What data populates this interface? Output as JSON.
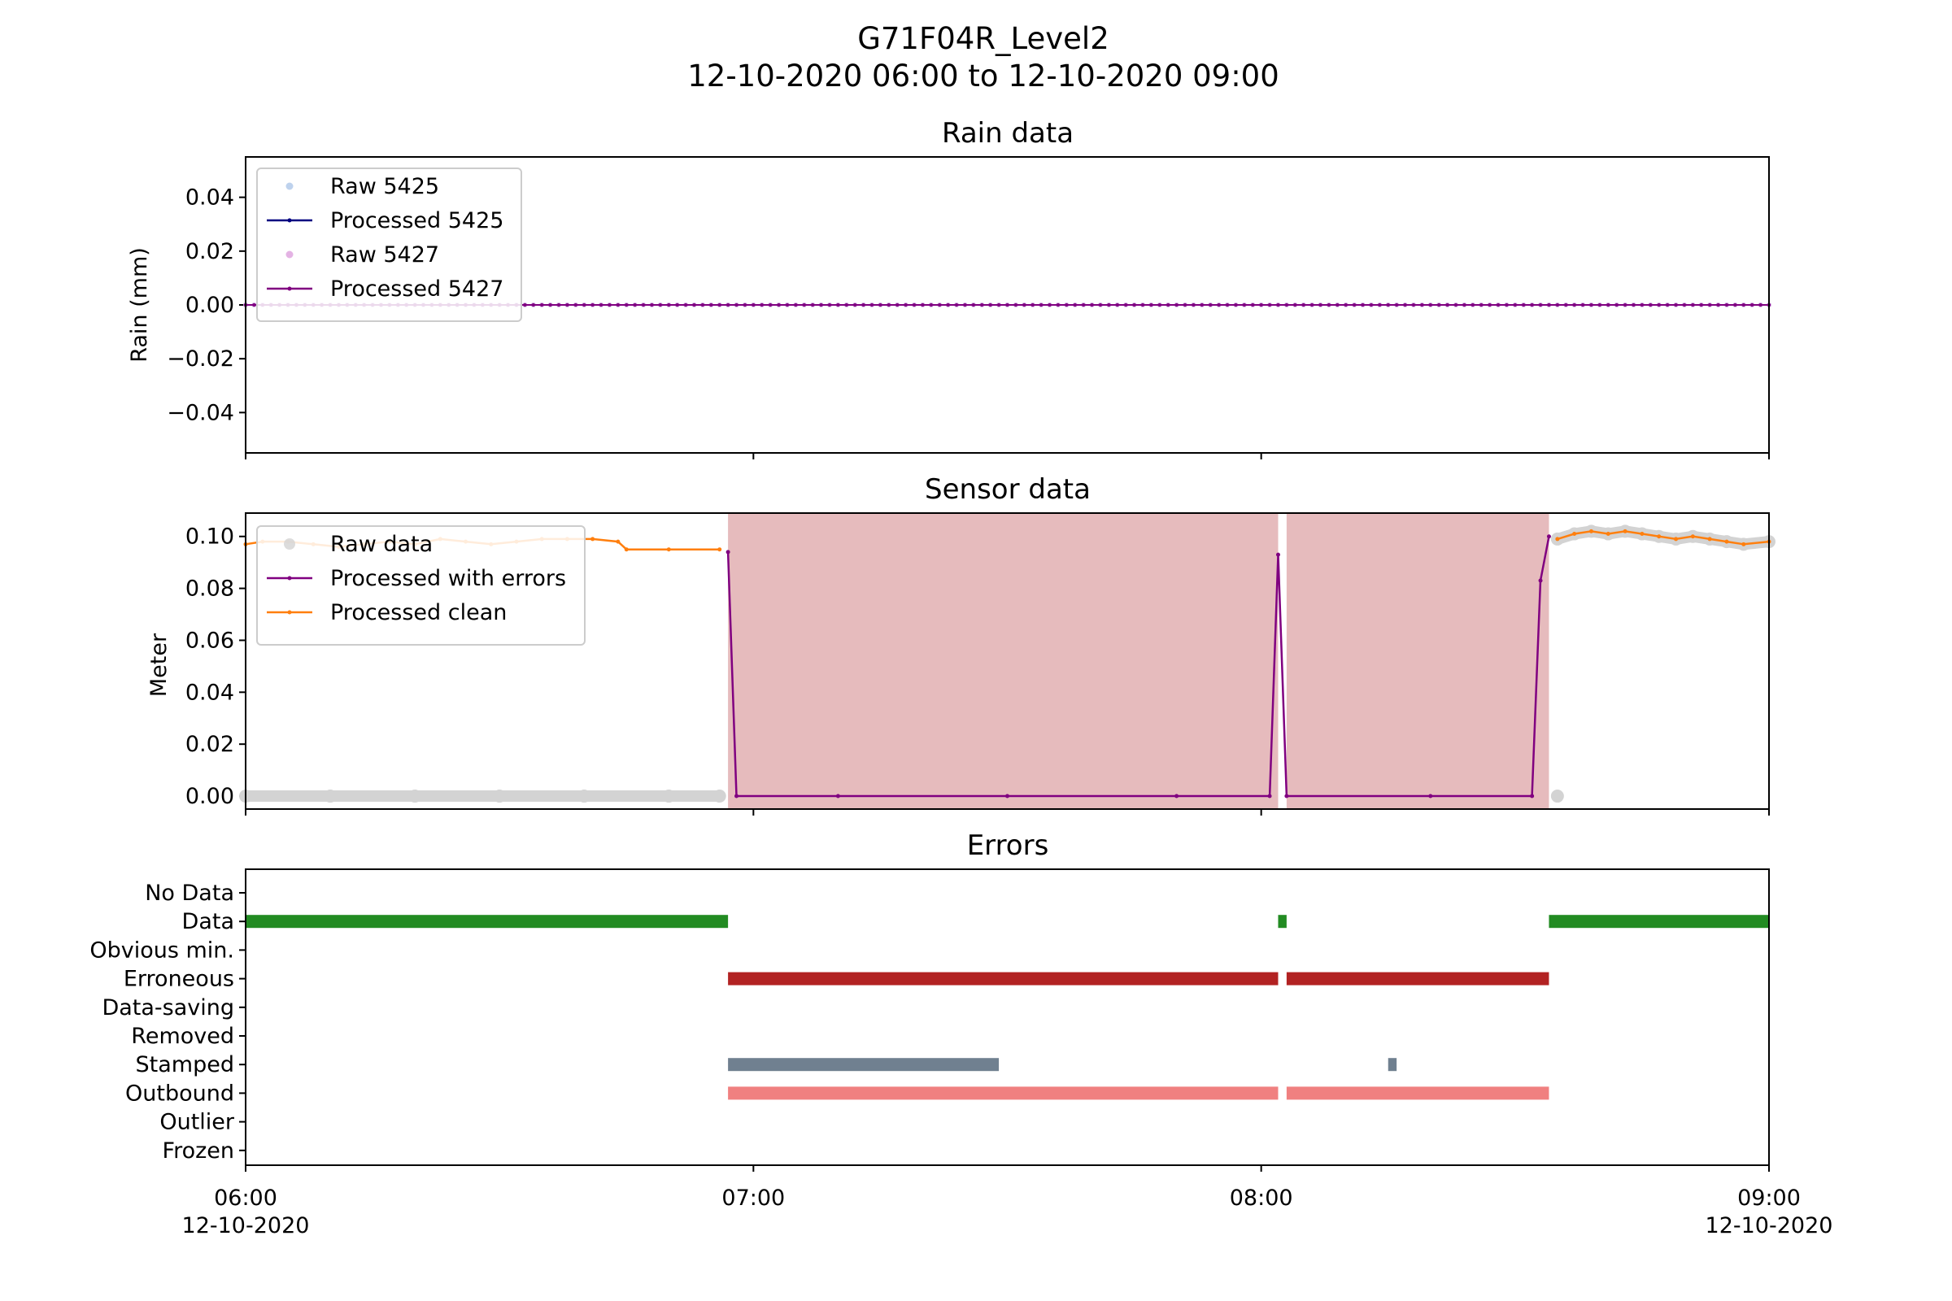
{
  "figure": {
    "title": "G71F04R_Level2",
    "subtitle": "12-10-2020 06:00 to 12-10-2020 09:00"
  },
  "x_axis": {
    "range": [
      "06:00",
      "09:00"
    ],
    "ticks": [
      {
        "value": "06:00",
        "date": "12-10-2020"
      },
      {
        "value": "07:00",
        "date": ""
      },
      {
        "value": "08:00",
        "date": ""
      },
      {
        "value": "09:00",
        "date": "12-10-2020"
      }
    ]
  },
  "chart_data": [
    {
      "type": "line",
      "title": "Rain data",
      "ylabel": "Rain (mm)",
      "ylim": [
        -0.055,
        0.055
      ],
      "yticks": [
        "0.04",
        "0.02",
        "0.00",
        "−0.02",
        "−0.04"
      ],
      "ytick_values": [
        0.04,
        0.02,
        0.0,
        -0.02,
        -0.04
      ],
      "legend": {
        "position": "upper-left"
      },
      "series": [
        {
          "name": "Raw 5425",
          "style": "points",
          "color": "#aec7e8",
          "x_range": [
            "06:00",
            "09:00"
          ],
          "step_minutes": 1,
          "constant_value": 0.0
        },
        {
          "name": "Processed 5425",
          "style": "line-markers",
          "color": "#000080",
          "x_range": [
            "06:00",
            "09:00"
          ],
          "step_minutes": 1,
          "constant_value": 0.0
        },
        {
          "name": "Raw 5427",
          "style": "points",
          "color": "#dda0dd",
          "x_range": [
            "06:00",
            "09:00"
          ],
          "step_minutes": 1,
          "constant_value": 0.0
        },
        {
          "name": "Processed 5427",
          "style": "line-markers",
          "color": "#800080",
          "x_range": [
            "06:00",
            "09:00"
          ],
          "step_minutes": 1,
          "constant_value": 0.0
        }
      ]
    },
    {
      "type": "line",
      "title": "Sensor data",
      "ylabel": "Meter",
      "ylim": [
        -0.005,
        0.109
      ],
      "yticks": [
        "0.10",
        "0.08",
        "0.06",
        "0.04",
        "0.02",
        "0.00"
      ],
      "ytick_values": [
        0.1,
        0.08,
        0.06,
        0.04,
        0.02,
        0.0
      ],
      "legend": {
        "position": "upper-left"
      },
      "error_regions": {
        "color": "#e6bbbd",
        "spans": [
          [
            "06:57",
            "08:02"
          ],
          [
            "08:03",
            "08:34"
          ]
        ]
      },
      "series": [
        {
          "name": "Raw data",
          "style": "points",
          "color": "#d3d3d3",
          "points": [
            [
              "06:00",
              0.0
            ],
            [
              "06:10",
              0.0
            ],
            [
              "06:20",
              0.0
            ],
            [
              "06:30",
              0.0
            ],
            [
              "06:40",
              0.0
            ],
            [
              "06:50",
              0.0
            ],
            [
              "06:56",
              0.0
            ],
            [
              "08:35",
              0.0
            ],
            [
              "08:35",
              0.099
            ],
            [
              "08:37",
              0.101
            ],
            [
              "08:39",
              0.102
            ],
            [
              "08:41",
              0.101
            ],
            [
              "08:43",
              0.102
            ],
            [
              "08:45",
              0.101
            ],
            [
              "08:47",
              0.1
            ],
            [
              "08:49",
              0.099
            ],
            [
              "08:51",
              0.1
            ],
            [
              "08:53",
              0.099
            ],
            [
              "08:55",
              0.098
            ],
            [
              "08:57",
              0.097
            ],
            [
              "09:00",
              0.098
            ]
          ]
        },
        {
          "name": "Processed with errors",
          "style": "line-markers",
          "color": "#800080",
          "points": [
            [
              "06:57",
              0.094
            ],
            [
              "06:58",
              0.0
            ],
            [
              "07:10",
              0.0
            ],
            [
              "07:30",
              0.0
            ],
            [
              "07:50",
              0.0
            ],
            [
              "08:01",
              0.0
            ],
            [
              "08:02",
              0.093
            ],
            [
              "08:03",
              0.0
            ],
            [
              "08:20",
              0.0
            ],
            [
              "08:32",
              0.0
            ],
            [
              "08:33",
              0.083
            ],
            [
              "08:34",
              0.1
            ]
          ]
        },
        {
          "name": "Processed clean",
          "style": "line-markers",
          "color": "#ff7f0e",
          "points": [
            [
              "06:00",
              0.097
            ],
            [
              "06:02",
              0.098
            ],
            [
              "06:05",
              0.098
            ],
            [
              "06:08",
              0.097
            ],
            [
              "06:11",
              0.096
            ],
            [
              "06:14",
              0.097
            ],
            [
              "06:17",
              0.098
            ],
            [
              "06:20",
              0.097
            ],
            [
              "06:23",
              0.099
            ],
            [
              "06:26",
              0.098
            ],
            [
              "06:29",
              0.097
            ],
            [
              "06:32",
              0.098
            ],
            [
              "06:35",
              0.099
            ],
            [
              "06:38",
              0.099
            ],
            [
              "06:41",
              0.099
            ],
            [
              "06:44",
              0.098
            ],
            [
              "06:45",
              0.095
            ],
            [
              "06:50",
              0.095
            ],
            [
              "06:56",
              0.095
            ],
            [
              "08:35",
              0.099
            ],
            [
              "08:37",
              0.101
            ],
            [
              "08:39",
              0.102
            ],
            [
              "08:41",
              0.101
            ],
            [
              "08:43",
              0.102
            ],
            [
              "08:45",
              0.101
            ],
            [
              "08:47",
              0.1
            ],
            [
              "08:49",
              0.099
            ],
            [
              "08:51",
              0.1
            ],
            [
              "08:53",
              0.099
            ],
            [
              "08:55",
              0.098
            ],
            [
              "08:57",
              0.097
            ],
            [
              "09:00",
              0.098
            ]
          ]
        }
      ]
    },
    {
      "type": "timeline",
      "title": "Errors",
      "categories": [
        "No Data",
        "Data",
        "Obvious min.",
        "Erroneous",
        "Data-saving",
        "Removed",
        "Stamped",
        "Outbound",
        "Outlier",
        "Frozen"
      ],
      "bars": [
        {
          "category": "Data",
          "color": "#228b22",
          "start": "06:00",
          "end": "06:57"
        },
        {
          "category": "Data",
          "color": "#228b22",
          "start": "08:02",
          "end": "08:03"
        },
        {
          "category": "Data",
          "color": "#228b22",
          "start": "08:34",
          "end": "09:00"
        },
        {
          "category": "Erroneous",
          "color": "#b22222",
          "start": "06:57",
          "end": "08:02"
        },
        {
          "category": "Erroneous",
          "color": "#b22222",
          "start": "08:03",
          "end": "08:34"
        },
        {
          "category": "Stamped",
          "color": "#708090",
          "start": "06:57",
          "end": "07:29"
        },
        {
          "category": "Stamped",
          "color": "#708090",
          "start": "08:15",
          "end": "08:16"
        },
        {
          "category": "Outbound",
          "color": "#f08080",
          "start": "06:57",
          "end": "08:02"
        },
        {
          "category": "Outbound",
          "color": "#f08080",
          "start": "08:03",
          "end": "08:34"
        }
      ]
    }
  ]
}
